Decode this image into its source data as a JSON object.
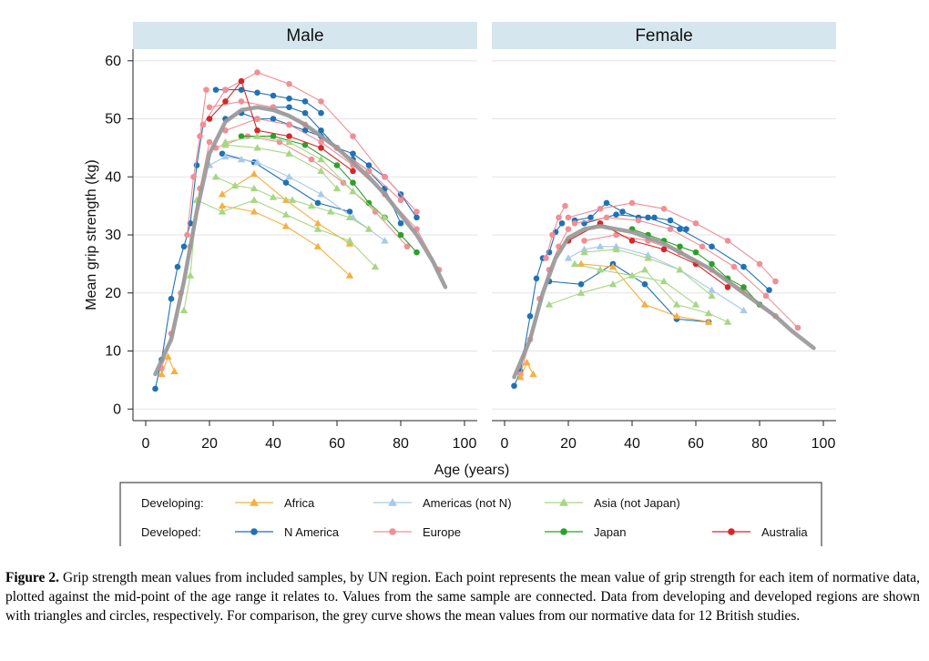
{
  "chart_data": {
    "type": "line",
    "ylabel": "Mean grip strength (kg)",
    "xlabel": "Age (years)",
    "xlim": [
      0,
      100
    ],
    "ylim": [
      0,
      60
    ],
    "xticks": [
      0,
      20,
      40,
      60,
      80,
      100
    ],
    "yticks": [
      0,
      10,
      20,
      30,
      40,
      50,
      60
    ],
    "grid": true,
    "panels": [
      {
        "title": "Male",
        "reference_curve": {
          "name": "12 British studies",
          "x": [
            3,
            8,
            12,
            16,
            20,
            25,
            30,
            35,
            40,
            45,
            50,
            55,
            60,
            65,
            70,
            75,
            80,
            85,
            90,
            94
          ],
          "y": [
            6,
            12,
            22,
            34,
            44,
            49.5,
            51.5,
            52,
            51.5,
            50.5,
            49,
            47,
            45,
            42.5,
            40,
            37,
            33.5,
            30,
            25.5,
            21
          ]
        },
        "series": [
          {
            "group": "N America",
            "x": [
              3,
              5,
              8,
              10,
              12,
              14,
              16,
              18
            ],
            "y": [
              3.5,
              8.5,
              19,
              24.5,
              28,
              32,
              42,
              49
            ]
          },
          {
            "group": "N America",
            "x": [
              22,
              25,
              30,
              35,
              40,
              45,
              50,
              55
            ],
            "y": [
              55,
              55,
              55,
              54.5,
              54,
              53.5,
              53,
              51
            ]
          },
          {
            "group": "N America",
            "x": [
              25,
              30,
              35,
              40,
              45,
              50,
              55,
              60,
              65,
              70,
              75,
              80
            ],
            "y": [
              50,
              51,
              50,
              50,
              49,
              48,
              47,
              45,
              43,
              41,
              38,
              32
            ]
          },
          {
            "group": "N America",
            "x": [
              24,
              34,
              44,
              54,
              64
            ],
            "y": [
              44,
              42.5,
              39,
              35.5,
              34
            ]
          },
          {
            "group": "N America",
            "x": [
              40,
              45,
              50,
              55,
              60,
              65,
              70,
              75,
              80,
              85
            ],
            "y": [
              52,
              52,
              51,
              48,
              45,
              44,
              42,
              40,
              37,
              33
            ]
          },
          {
            "group": "Europe",
            "x": [
              13,
              15,
              17,
              19
            ],
            "y": [
              30,
              40,
              47,
              55
            ]
          },
          {
            "group": "Europe",
            "x": [
              18,
              25,
              35,
              45,
              55,
              65,
              75,
              85
            ],
            "y": [
              49,
              55,
              58,
              56,
              53,
              47,
              40,
              34
            ]
          },
          {
            "group": "Europe",
            "x": [
              20,
              30,
              40,
              50,
              60,
              70,
              80
            ],
            "y": [
              52,
              53,
              52,
              49,
              45,
              41,
              36
            ]
          },
          {
            "group": "Europe",
            "x": [
              25,
              35,
              45,
              55,
              65,
              75,
              85,
              92
            ],
            "y": [
              48,
              50,
              49,
              46,
              42,
              37,
              31,
              24
            ]
          },
          {
            "group": "Europe",
            "x": [
              22,
              32,
              42,
              52,
              62,
              72,
              82
            ],
            "y": [
              45,
              47,
              46,
              43,
              39,
              34,
              28
            ]
          },
          {
            "group": "Europe",
            "x": [
              5,
              8,
              11,
              14,
              17,
              20
            ],
            "y": [
              7,
              13,
              20,
              28,
              38,
              46
            ]
          },
          {
            "group": "Japan",
            "x": [
              30,
              40,
              50,
              60,
              65,
              70,
              75,
              80,
              85
            ],
            "y": [
              47,
              47,
              45.5,
              42,
              39,
              35.5,
              33,
              30,
              27
            ]
          },
          {
            "group": "Australia",
            "x": [
              20,
              25,
              30,
              35,
              45,
              55,
              65
            ],
            "y": [
              50,
              53,
              56.5,
              48,
              47,
              45,
              41
            ]
          },
          {
            "group": "Africa",
            "x": [
              24,
              34,
              44,
              54,
              64
            ],
            "y": [
              35,
              34,
              31.5,
              28,
              23
            ]
          },
          {
            "group": "Africa",
            "x": [
              24,
              34,
              44,
              54,
              64
            ],
            "y": [
              37,
              40.5,
              36,
              32,
              28.5
            ]
          },
          {
            "group": "Africa",
            "x": [
              5,
              7,
              9
            ],
            "y": [
              6,
              9,
              6.5
            ]
          },
          {
            "group": "Americas (not N)",
            "x": [
              20,
              25,
              30,
              35,
              45,
              55,
              65,
              75
            ],
            "y": [
              42,
              43.5,
              43,
              42.5,
              40,
              37,
              33,
              29
            ]
          },
          {
            "group": "Asia (not Japan)",
            "x": [
              12,
              14,
              16,
              24,
              34,
              44,
              54,
              64,
              72
            ],
            "y": [
              17,
              23,
              36,
              34,
              36,
              33.5,
              31,
              29,
              24.5
            ]
          },
          {
            "group": "Asia (not Japan)",
            "x": [
              22,
              28,
              34,
              40,
              46,
              52,
              58,
              64,
              70
            ],
            "y": [
              40,
              38.5,
              38,
              36.5,
              36,
              35,
              34,
              33,
              31
            ]
          },
          {
            "group": "Asia (not Japan)",
            "x": [
              25,
              35,
              45,
              55,
              65,
              75
            ],
            "y": [
              46,
              47,
              46,
              43,
              37.5,
              33
            ]
          },
          {
            "group": "Asia (not Japan)",
            "x": [
              25,
              35,
              45,
              55,
              60
            ],
            "y": [
              45.5,
              45,
              44,
              41,
              38
            ]
          }
        ]
      },
      {
        "title": "Female",
        "reference_curve": {
          "name": "12 British studies",
          "x": [
            3,
            8,
            12,
            16,
            20,
            25,
            30,
            35,
            40,
            45,
            50,
            55,
            60,
            65,
            70,
            75,
            80,
            85,
            90,
            97
          ],
          "y": [
            5.5,
            12,
            20,
            26,
            29.5,
            31,
            31.5,
            31,
            30.5,
            29.5,
            28.5,
            27,
            25.5,
            24,
            22,
            20,
            18,
            16,
            13.5,
            10.5
          ]
        },
        "series": [
          {
            "group": "N America",
            "x": [
              3,
              5,
              8,
              10,
              12,
              14,
              16,
              18
            ],
            "y": [
              4,
              6.5,
              16,
              22.5,
              26,
              27,
              30.5,
              32
            ]
          },
          {
            "group": "N America",
            "x": [
              22,
              27,
              32,
              37,
              42,
              47,
              52,
              57
            ],
            "y": [
              32.5,
              33,
              35.5,
              34,
              33,
              33,
              32.5,
              31
            ]
          },
          {
            "group": "N America",
            "x": [
              25,
              35,
              45,
              55,
              65,
              75,
              83
            ],
            "y": [
              32,
              33.5,
              33,
              31,
              28,
              24.5,
              20.5
            ]
          },
          {
            "group": "N America",
            "x": [
              14,
              24,
              34,
              44,
              54,
              64
            ],
            "y": [
              22,
              21.5,
              25,
              21.5,
              15.5,
              15
            ]
          },
          {
            "group": "Europe",
            "x": [
              13,
              15,
              17,
              19
            ],
            "y": [
              26,
              30,
              33,
              35
            ]
          },
          {
            "group": "Europe",
            "x": [
              20,
              30,
              40,
              50,
              60,
              70,
              80,
              85
            ],
            "y": [
              33,
              34.5,
              35.5,
              34.5,
              32,
              29,
              25,
              22
            ]
          },
          {
            "group": "Europe",
            "x": [
              22,
              32,
              42,
              52,
              62,
              72,
              82,
              92
            ],
            "y": [
              32,
              33,
              32.5,
              31,
              28,
              24.5,
              19.5,
              14
            ]
          },
          {
            "group": "Europe",
            "x": [
              25,
              35,
              45,
              55,
              65,
              75,
              85
            ],
            "y": [
              29,
              30,
              29,
              27,
              24,
              20.5,
              16
            ]
          },
          {
            "group": "Europe",
            "x": [
              5,
              8,
              11,
              14,
              17,
              20
            ],
            "y": [
              6,
              12,
              19,
              24,
              28,
              31
            ]
          },
          {
            "group": "Japan",
            "x": [
              40,
              45,
              50,
              55,
              60,
              65,
              70,
              75,
              80
            ],
            "y": [
              31,
              30,
              29,
              28,
              27,
              25,
              22.5,
              21,
              18
            ]
          },
          {
            "group": "Australia",
            "x": [
              20,
              30,
              40,
              50,
              60,
              70
            ],
            "y": [
              29,
              32,
              29,
              27.5,
              25,
              21
            ]
          },
          {
            "group": "Africa",
            "x": [
              5,
              7,
              9
            ],
            "y": [
              5.5,
              8,
              6
            ]
          },
          {
            "group": "Africa",
            "x": [
              24,
              34,
              44,
              54,
              64
            ],
            "y": [
              25,
              24.5,
              18,
              16,
              15
            ]
          },
          {
            "group": "Americas (not N)",
            "x": [
              20,
              25,
              30,
              35,
              45,
              55,
              65,
              75
            ],
            "y": [
              26,
              27.5,
              28,
              28,
              26.5,
              24,
              20.5,
              17
            ]
          },
          {
            "group": "Asia (not Japan)",
            "x": [
              14,
              24,
              34,
              44,
              54,
              64,
              70
            ],
            "y": [
              18,
              20,
              21.5,
              24,
              18,
              16.5,
              15
            ]
          },
          {
            "group": "Asia (not Japan)",
            "x": [
              25,
              35,
              45,
              55,
              65
            ],
            "y": [
              27,
              27.5,
              26,
              24,
              19.5
            ]
          },
          {
            "group": "Asia (not Japan)",
            "x": [
              22,
              30,
              40,
              50,
              60
            ],
            "y": [
              25,
              24,
              23,
              22,
              18
            ]
          }
        ]
      }
    ],
    "legend": {
      "placement": "bottom",
      "rows": [
        {
          "label": "Developing:",
          "entries": [
            {
              "name": "Africa",
              "marker": "triangle",
              "color": "#f5b041"
            },
            {
              "name": "Americas (not N)",
              "marker": "triangle",
              "color": "#a9c9e8"
            },
            {
              "name": "Asia (not Japan)",
              "marker": "triangle",
              "color": "#a6d785"
            }
          ]
        },
        {
          "label": "Developed:",
          "entries": [
            {
              "name": "N America",
              "marker": "circle",
              "color": "#2171b5"
            },
            {
              "name": "Europe",
              "marker": "circle",
              "color": "#f08f96"
            },
            {
              "name": "Japan",
              "marker": "circle",
              "color": "#2ca02c"
            },
            {
              "name": "Australia",
              "marker": "circle",
              "color": "#d62728"
            }
          ]
        }
      ]
    },
    "reference_color": "#999999"
  },
  "caption": {
    "label": "Figure 2.",
    "text": " Grip strength mean values from included samples, by UN region. Each point represents the mean value of grip strength for each item of normative data, plotted against the mid-point of the age range it relates to. Values from the same sample are connected. Data from developing and developed regions are shown with triangles and circles, respectively. For comparison, the grey curve shows the mean values from our normative data for 12 British studies."
  }
}
